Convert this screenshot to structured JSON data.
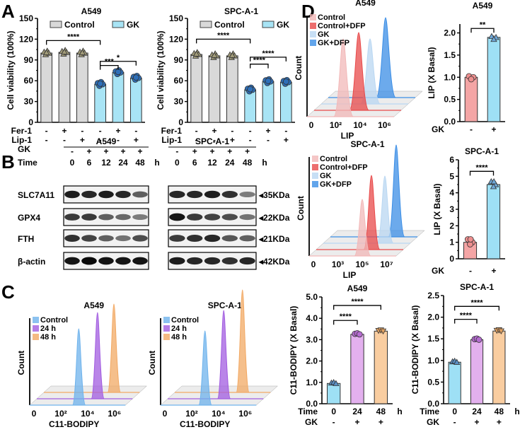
{
  "panel_labels": {
    "A": "A",
    "B": "B",
    "C": "C",
    "D": "D"
  },
  "colors": {
    "control_gray": "#d9d9d9",
    "gk_cyan": "#a8e4f5",
    "control_point": "#a09a78",
    "gk_point": "#2e6fb8",
    "lip_control_bar": "#f4a5a5",
    "lip_gk_bar": "#9ee0f5",
    "bodipy_control": "#9ee0f5",
    "bodipy_24h": "#e3b0ee",
    "bodipy_48h": "#f9cda0",
    "hist_control": "#f2b8b8",
    "hist_control_dfp": "#e84a4a",
    "hist_gk": "#b9d7f2",
    "hist_gk_dfp": "#3b8ee6",
    "c11_control": "#6fb3ec",
    "c11_24h": "#a25ce0",
    "c11_48h": "#f2a964"
  },
  "chart_data": [
    {
      "id": "A_A549",
      "type": "bar",
      "title": "A549",
      "ylabel": "Cell viability (100%)",
      "ylim": [
        0,
        150
      ],
      "yticks": [
        "0",
        "30",
        "60",
        "90",
        "120",
        "150"
      ],
      "legend": [
        "Control",
        "GK"
      ],
      "legend_position": "top",
      "row_labels": [
        "Fer-1",
        "Lip-1"
      ],
      "conditions": [
        {
          "group": "Control",
          "fer1": "-",
          "lip1": "-",
          "value": 100
        },
        {
          "group": "Control",
          "fer1": "+",
          "lip1": "-",
          "value": 101
        },
        {
          "group": "Control",
          "fer1": "-",
          "lip1": "+",
          "value": 100
        },
        {
          "group": "GK",
          "fer1": "-",
          "lip1": "-",
          "value": 55
        },
        {
          "group": "GK",
          "fer1": "+",
          "lip1": "-",
          "value": 72
        },
        {
          "group": "GK",
          "fer1": "-",
          "lip1": "+",
          "value": 64
        }
      ],
      "significance": [
        {
          "from": 0,
          "to": 3,
          "label": "****"
        },
        {
          "from": 3,
          "to": 4,
          "label": "***"
        },
        {
          "from": 3,
          "to": 5,
          "label": "*"
        }
      ]
    },
    {
      "id": "A_SPCA1",
      "type": "bar",
      "title": "SPC-A-1",
      "ylabel": "Cell viability (100%)",
      "ylim": [
        0,
        150
      ],
      "yticks": [
        "0",
        "30",
        "60",
        "90",
        "120",
        "150"
      ],
      "legend": [
        "Control",
        "GK"
      ],
      "legend_position": "top",
      "row_labels": [
        "Fer-1",
        "Lip-1"
      ],
      "conditions": [
        {
          "group": "Control",
          "fer1": "-",
          "lip1": "-",
          "value": 98
        },
        {
          "group": "Control",
          "fer1": "+",
          "lip1": "-",
          "value": 96
        },
        {
          "group": "Control",
          "fer1": "-",
          "lip1": "+",
          "value": 96
        },
        {
          "group": "GK",
          "fer1": "-",
          "lip1": "-",
          "value": 47
        },
        {
          "group": "GK",
          "fer1": "+",
          "lip1": "-",
          "value": 59
        },
        {
          "group": "GK",
          "fer1": "-",
          "lip1": "+",
          "value": 58
        }
      ],
      "significance": [
        {
          "from": 0,
          "to": 3,
          "label": "****"
        },
        {
          "from": 3,
          "to": 4,
          "label": "****"
        },
        {
          "from": 3,
          "to": 5,
          "label": "****"
        }
      ]
    },
    {
      "id": "D_A549_hist",
      "type": "area",
      "title": "A549",
      "xlabel": "LIP",
      "ylabel": "Count",
      "xticks": [
        "0",
        "10²",
        "10⁴",
        "10⁶"
      ],
      "legend": [
        "Control",
        "Control+DFP",
        "GK",
        "GK+DFP"
      ],
      "legend_position": "top-left",
      "peaks_log10": [
        3.6,
        4.2,
        4.9,
        5.8
      ]
    },
    {
      "id": "D_A549_bar",
      "type": "bar",
      "title": "A549",
      "ylabel": "LIP (X Basal)",
      "ylim": [
        0,
        2.2
      ],
      "yticks": [
        "0.0",
        "0.5",
        "1.0",
        "1.5",
        "2.0"
      ],
      "row_labels": [
        "GK"
      ],
      "categories": [
        "-",
        "+"
      ],
      "values": [
        1.0,
        1.9
      ],
      "significance": [
        {
          "from": 0,
          "to": 1,
          "label": "**"
        }
      ]
    },
    {
      "id": "D_SPCA1_hist",
      "type": "area",
      "title": "SPC-A-1",
      "xlabel": "LIP",
      "ylabel": "Count",
      "xticks": [
        "0",
        "10³",
        "10⁵",
        "10⁷"
      ],
      "legend": [
        "Control",
        "Control+DFP",
        "GK",
        "GK+DFP"
      ],
      "legend_position": "top-left",
      "peaks_log10": [
        5.6,
        6.2,
        6.9,
        7.8
      ]
    },
    {
      "id": "D_SPCA1_bar",
      "type": "bar",
      "title": "SPC-A-1",
      "ylabel": "LIP (X Basal)",
      "ylim": [
        0,
        6
      ],
      "yticks": [
        "0",
        "1",
        "2",
        "3",
        "4",
        "5",
        "6"
      ],
      "row_labels": [
        "GK"
      ],
      "categories": [
        "-",
        "+"
      ],
      "values": [
        1.0,
        4.5
      ],
      "significance": [
        {
          "from": 0,
          "to": 1,
          "label": "****"
        }
      ]
    },
    {
      "id": "C_A549_hist",
      "type": "area",
      "title": "A549",
      "xlabel": "C11-BODIPY",
      "ylabel": "Count",
      "xticks": [
        "0",
        "10²",
        "10⁴",
        "10⁶"
      ],
      "legend": [
        "Control",
        "24 h",
        "48 h"
      ],
      "legend_position": "top-left"
    },
    {
      "id": "C_SPCA1_hist",
      "type": "area",
      "title": "SPC-A-1",
      "xlabel": "C11-BODIPY",
      "ylabel": "Count",
      "xticks": [
        "0",
        "10²",
        "10⁴",
        "10⁶"
      ],
      "legend": [
        "Control",
        "24 h",
        "48 h"
      ],
      "legend_position": "top-left"
    },
    {
      "id": "C_A549_bar",
      "type": "bar",
      "title": "A549",
      "ylabel": "C11-BODIPY (X Basal)",
      "ylim": [
        0,
        5
      ],
      "yticks": [
        "0.0",
        "1.0",
        "2.0",
        "3.0",
        "4.0",
        "5.0"
      ],
      "row_labels": [
        "Time",
        "GK"
      ],
      "time_unit": "h",
      "categories": [
        "0",
        "24",
        "48"
      ],
      "gk": [
        "-",
        "+",
        "+"
      ],
      "values": [
        0.95,
        3.25,
        3.4
      ],
      "significance": [
        {
          "from": 0,
          "to": 1,
          "label": "****"
        },
        {
          "from": 0,
          "to": 2,
          "label": "****"
        }
      ]
    },
    {
      "id": "C_SPCA1_bar",
      "type": "bar",
      "title": "SPC-A-1",
      "ylabel": "C11-BODIPY (X Basal)",
      "ylim": [
        0,
        2.5
      ],
      "yticks": [
        "0.0",
        "0.5",
        "1.0",
        "1.5",
        "2.0",
        "2.5"
      ],
      "row_labels": [
        "Time",
        "GK"
      ],
      "time_unit": "h",
      "categories": [
        "0",
        "24",
        "48"
      ],
      "gk": [
        "-",
        "+",
        "+"
      ],
      "values": [
        0.96,
        1.48,
        1.68
      ],
      "significance": [
        {
          "from": 0,
          "to": 1,
          "label": "****"
        },
        {
          "from": 0,
          "to": 2,
          "label": "****"
        }
      ]
    }
  ],
  "western_blot": {
    "cell_lines": [
      "A549",
      "SPC-A-1"
    ],
    "gk_label": "GK",
    "time_label": "Time",
    "time_unit": "h",
    "gk": [
      "-",
      "+",
      "+",
      "+",
      "+"
    ],
    "times": [
      "0",
      "6",
      "12",
      "24",
      "48"
    ],
    "proteins": [
      {
        "name": "SLC7A11",
        "kda": "35KDa",
        "a549": [
          0.9,
          0.85,
          0.9,
          0.85,
          0.55
        ],
        "spca1": [
          0.85,
          0.85,
          0.9,
          0.8,
          0.4
        ]
      },
      {
        "name": "GPX4",
        "kda": "22KDa",
        "a549": [
          0.75,
          0.75,
          0.55,
          0.5,
          0.4
        ],
        "spca1": [
          0.95,
          0.75,
          0.7,
          0.65,
          0.45
        ]
      },
      {
        "name": "FTH",
        "kda": "21KDa",
        "a549": [
          0.8,
          0.7,
          0.55,
          0.45,
          0.65
        ],
        "spca1": [
          0.75,
          0.8,
          0.85,
          0.6,
          0.55
        ]
      },
      {
        "name": "β-actin",
        "kda": "42KDa",
        "a549": [
          0.95,
          1.0,
          0.95,
          0.95,
          0.95
        ],
        "spca1": [
          0.9,
          0.85,
          0.85,
          0.8,
          0.85
        ]
      }
    ]
  }
}
